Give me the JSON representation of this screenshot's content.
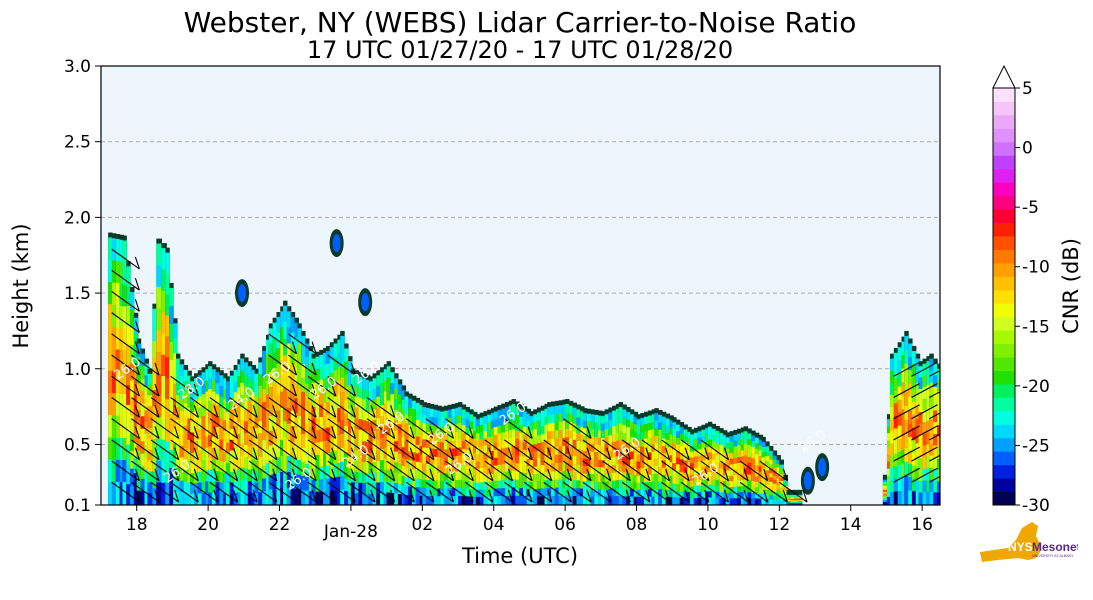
{
  "chart_data": {
    "type": "heatmap",
    "title": "Webster, NY (WEBS) Lidar Carrier-to-Noise Ratio",
    "subtitle": "17 UTC 01/27/20 - 17 UTC 01/28/20",
    "xlabel": "Time (UTC)",
    "ylabel": "Height (km)",
    "x_tick_labels": [
      "18",
      "20",
      "22",
      "Jan-28",
      "02",
      "04",
      "06",
      "08",
      "10",
      "12",
      "14",
      "16"
    ],
    "x_ticks_hours": [
      18,
      20,
      22,
      24,
      26,
      28,
      30,
      32,
      34,
      36,
      38,
      40
    ],
    "xlim_hours": [
      17,
      40.5
    ],
    "y_tick_labels": [
      "0.1",
      "0.5",
      "1.0",
      "1.5",
      "2.0",
      "2.5",
      "3.0"
    ],
    "y_ticks": [
      0.1,
      0.5,
      1.0,
      1.5,
      2.0,
      2.5,
      3.0
    ],
    "ylim": [
      0.1,
      3.0
    ],
    "grid": "horizontal dashed",
    "colorbar": {
      "label": "CNR (dB)",
      "tick_labels": [
        "5",
        "0",
        "-5",
        "-10",
        "-15",
        "-20",
        "-25",
        "-30"
      ],
      "ticks": [
        5,
        0,
        -5,
        -10,
        -15,
        -20,
        -25,
        -30
      ],
      "range": [
        -30,
        5
      ],
      "extend": "max",
      "colors": [
        "#000055",
        "#0000a0",
        "#0020e0",
        "#0060ff",
        "#00a0ff",
        "#00d8ff",
        "#00ffe0",
        "#00ffa0",
        "#00f060",
        "#20e000",
        "#50e800",
        "#80f000",
        "#a8f800",
        "#d0ff20",
        "#f0ff00",
        "#ffe000",
        "#ffc000",
        "#ffa000",
        "#ff7800",
        "#ff5000",
        "#ff2000",
        "#ff0030",
        "#ff0080",
        "#ff00c0",
        "#e020f0",
        "#c040ff",
        "#d070ff",
        "#e090ff",
        "#eaa8f8",
        "#f4c4fa",
        "#fce0fc"
      ]
    },
    "background_color": "#eef6fd",
    "cloud_columns": [
      {
        "t": 17.2,
        "top": 1.9
      },
      {
        "t": 17.6,
        "top": 1.88
      },
      {
        "t": 18.0,
        "top": 1.2
      },
      {
        "t": 18.3,
        "top": 1.0
      },
      {
        "t": 18.55,
        "top": 1.86
      },
      {
        "t": 18.8,
        "top": 1.8
      },
      {
        "t": 19.1,
        "top": 1.1
      },
      {
        "t": 19.5,
        "top": 0.95
      },
      {
        "t": 20.0,
        "top": 1.05
      },
      {
        "t": 20.5,
        "top": 0.95
      },
      {
        "t": 20.9,
        "top": 1.1
      },
      {
        "t": 21.3,
        "top": 1.0
      },
      {
        "t": 21.7,
        "top": 1.3
      },
      {
        "t": 22.1,
        "top": 1.45
      },
      {
        "t": 22.5,
        "top": 1.3
      },
      {
        "t": 22.9,
        "top": 1.1
      },
      {
        "t": 23.3,
        "top": 1.15
      },
      {
        "t": 23.7,
        "top": 1.25
      },
      {
        "t": 24.0,
        "top": 1.0
      },
      {
        "t": 24.5,
        "top": 0.95
      },
      {
        "t": 25.0,
        "top": 1.05
      },
      {
        "t": 25.5,
        "top": 0.85
      },
      {
        "t": 26.0,
        "top": 0.78
      },
      {
        "t": 26.5,
        "top": 0.75
      },
      {
        "t": 27.0,
        "top": 0.78
      },
      {
        "t": 27.5,
        "top": 0.7
      },
      {
        "t": 28.0,
        "top": 0.75
      },
      {
        "t": 28.5,
        "top": 0.8
      },
      {
        "t": 29.0,
        "top": 0.72
      },
      {
        "t": 29.5,
        "top": 0.78
      },
      {
        "t": 30.0,
        "top": 0.8
      },
      {
        "t": 30.5,
        "top": 0.74
      },
      {
        "t": 31.0,
        "top": 0.72
      },
      {
        "t": 31.5,
        "top": 0.78
      },
      {
        "t": 32.0,
        "top": 0.7
      },
      {
        "t": 32.5,
        "top": 0.74
      },
      {
        "t": 33.0,
        "top": 0.68
      },
      {
        "t": 33.5,
        "top": 0.6
      },
      {
        "t": 34.0,
        "top": 0.65
      },
      {
        "t": 34.5,
        "top": 0.58
      },
      {
        "t": 35.0,
        "top": 0.62
      },
      {
        "t": 35.5,
        "top": 0.55
      },
      {
        "t": 36.0,
        "top": 0.4
      },
      {
        "t": 36.2,
        "top": 0.2
      },
      {
        "t": 38.9,
        "top": 0.3
      },
      {
        "t": 39.1,
        "top": 1.1
      },
      {
        "t": 39.5,
        "top": 1.25
      },
      {
        "t": 39.9,
        "top": 1.05
      },
      {
        "t": 40.2,
        "top": 1.1
      },
      {
        "t": 40.5,
        "top": 1.0
      }
    ],
    "isolated_echoes": [
      {
        "t": 23.6,
        "h": 1.83
      },
      {
        "t": 20.95,
        "h": 1.5
      },
      {
        "t": 24.4,
        "h": 1.44
      },
      {
        "t": 36.8,
        "h": 0.26
      },
      {
        "t": 37.2,
        "h": 0.35
      }
    ],
    "contour_labels": [
      "26.0",
      "26.0",
      "28.0",
      "24.0",
      "26.0",
      "26.0",
      "26.0",
      "24.0",
      "26.0",
      "26.0",
      "26.0",
      "26.0",
      "26.0",
      "26.0",
      "26.0",
      "26.0"
    ]
  },
  "logo": {
    "primary": "NYS",
    "secondary": "Mesonet",
    "tagline": "UNIVERSITY AT ALBANY",
    "state_color": "#f0a800",
    "text_color": "#5a2a82"
  }
}
